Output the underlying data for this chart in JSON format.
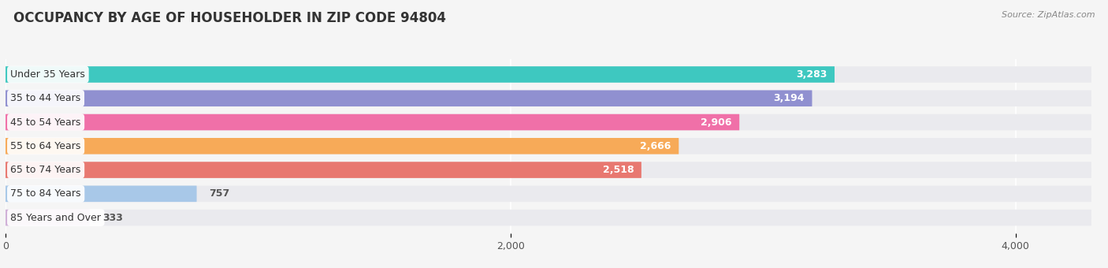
{
  "title": "OCCUPANCY BY AGE OF HOUSEHOLDER IN ZIP CODE 94804",
  "source": "Source: ZipAtlas.com",
  "categories": [
    "Under 35 Years",
    "35 to 44 Years",
    "45 to 54 Years",
    "55 to 64 Years",
    "65 to 74 Years",
    "75 to 84 Years",
    "85 Years and Over"
  ],
  "values": [
    3283,
    3194,
    2906,
    2666,
    2518,
    757,
    333
  ],
  "bar_colors": [
    "#3ec8c0",
    "#9090d0",
    "#f070a8",
    "#f7aa58",
    "#e87870",
    "#a8c8e8",
    "#d0b0d8"
  ],
  "background_color": "#f5f5f5",
  "bar_bg_color": "#eaeaee",
  "xlim_max": 4300,
  "xticks": [
    0,
    2000,
    4000
  ],
  "title_fontsize": 12,
  "label_fontsize": 9,
  "value_fontsize": 9,
  "bar_height": 0.68,
  "figsize": [
    14.06,
    3.4
  ]
}
